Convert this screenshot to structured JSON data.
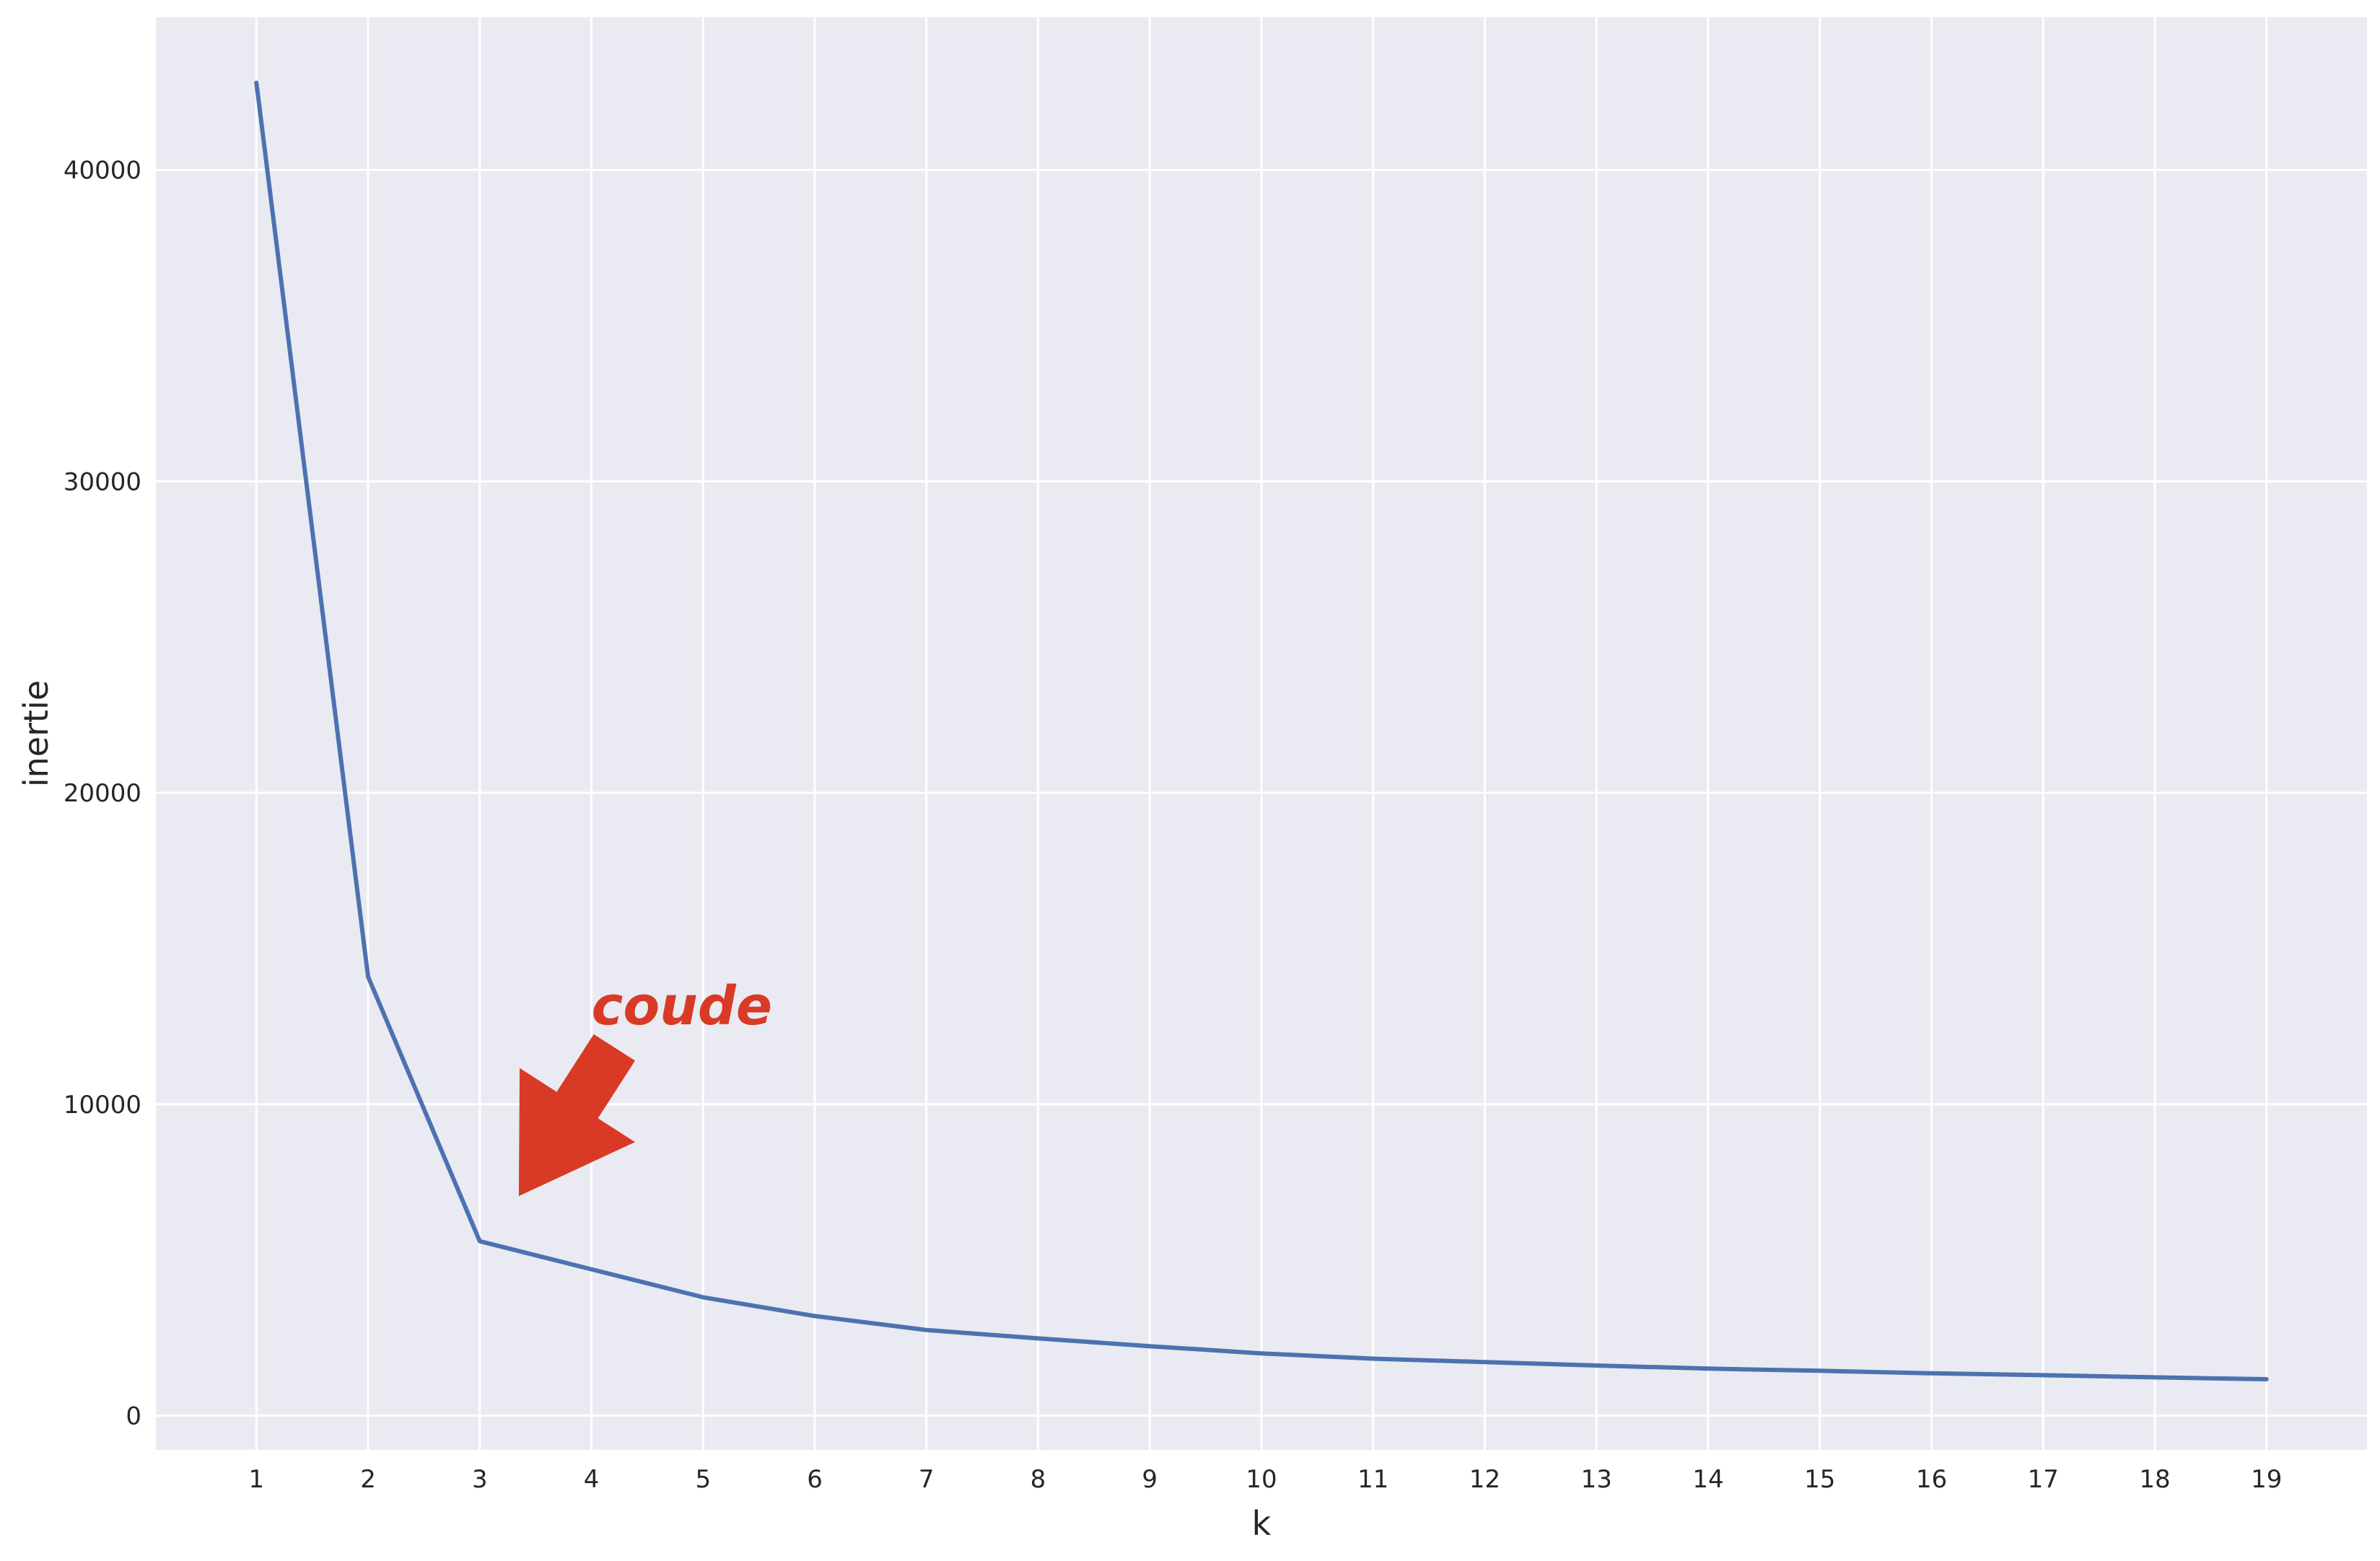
{
  "chart_data": {
    "type": "line",
    "title": "",
    "xlabel": "k",
    "ylabel": "inertie",
    "x": [
      1,
      2,
      3,
      4,
      5,
      6,
      7,
      8,
      9,
      10,
      11,
      12,
      13,
      14,
      15,
      16,
      17,
      18,
      19
    ],
    "series": [
      {
        "values": [
          42800,
          14100,
          5600,
          4700,
          3800,
          3200,
          2750,
          2480,
          2230,
          2000,
          1830,
          1720,
          1610,
          1510,
          1440,
          1360,
          1300,
          1230,
          1170
        ],
        "color": "#4c72b0"
      }
    ],
    "xticks": [
      "1",
      "2",
      "3",
      "4",
      "5",
      "6",
      "7",
      "8",
      "9",
      "10",
      "11",
      "12",
      "13",
      "14",
      "15",
      "16",
      "17",
      "18",
      "19"
    ],
    "yticks": [
      "0",
      "10000",
      "20000",
      "30000",
      "40000"
    ],
    "xlim": [
      0.1,
      19.9
    ],
    "ylim": [
      -1100,
      44900
    ],
    "grid": true,
    "background": "#eaeaf2",
    "grid_color": "#ffffff",
    "annotation": {
      "text": "coude",
      "color": "#d93a26",
      "arrow_tip": {
        "x": 3.35,
        "y": 7050
      },
      "text_pos": {
        "x": 4.0,
        "y": 12800
      }
    }
  }
}
